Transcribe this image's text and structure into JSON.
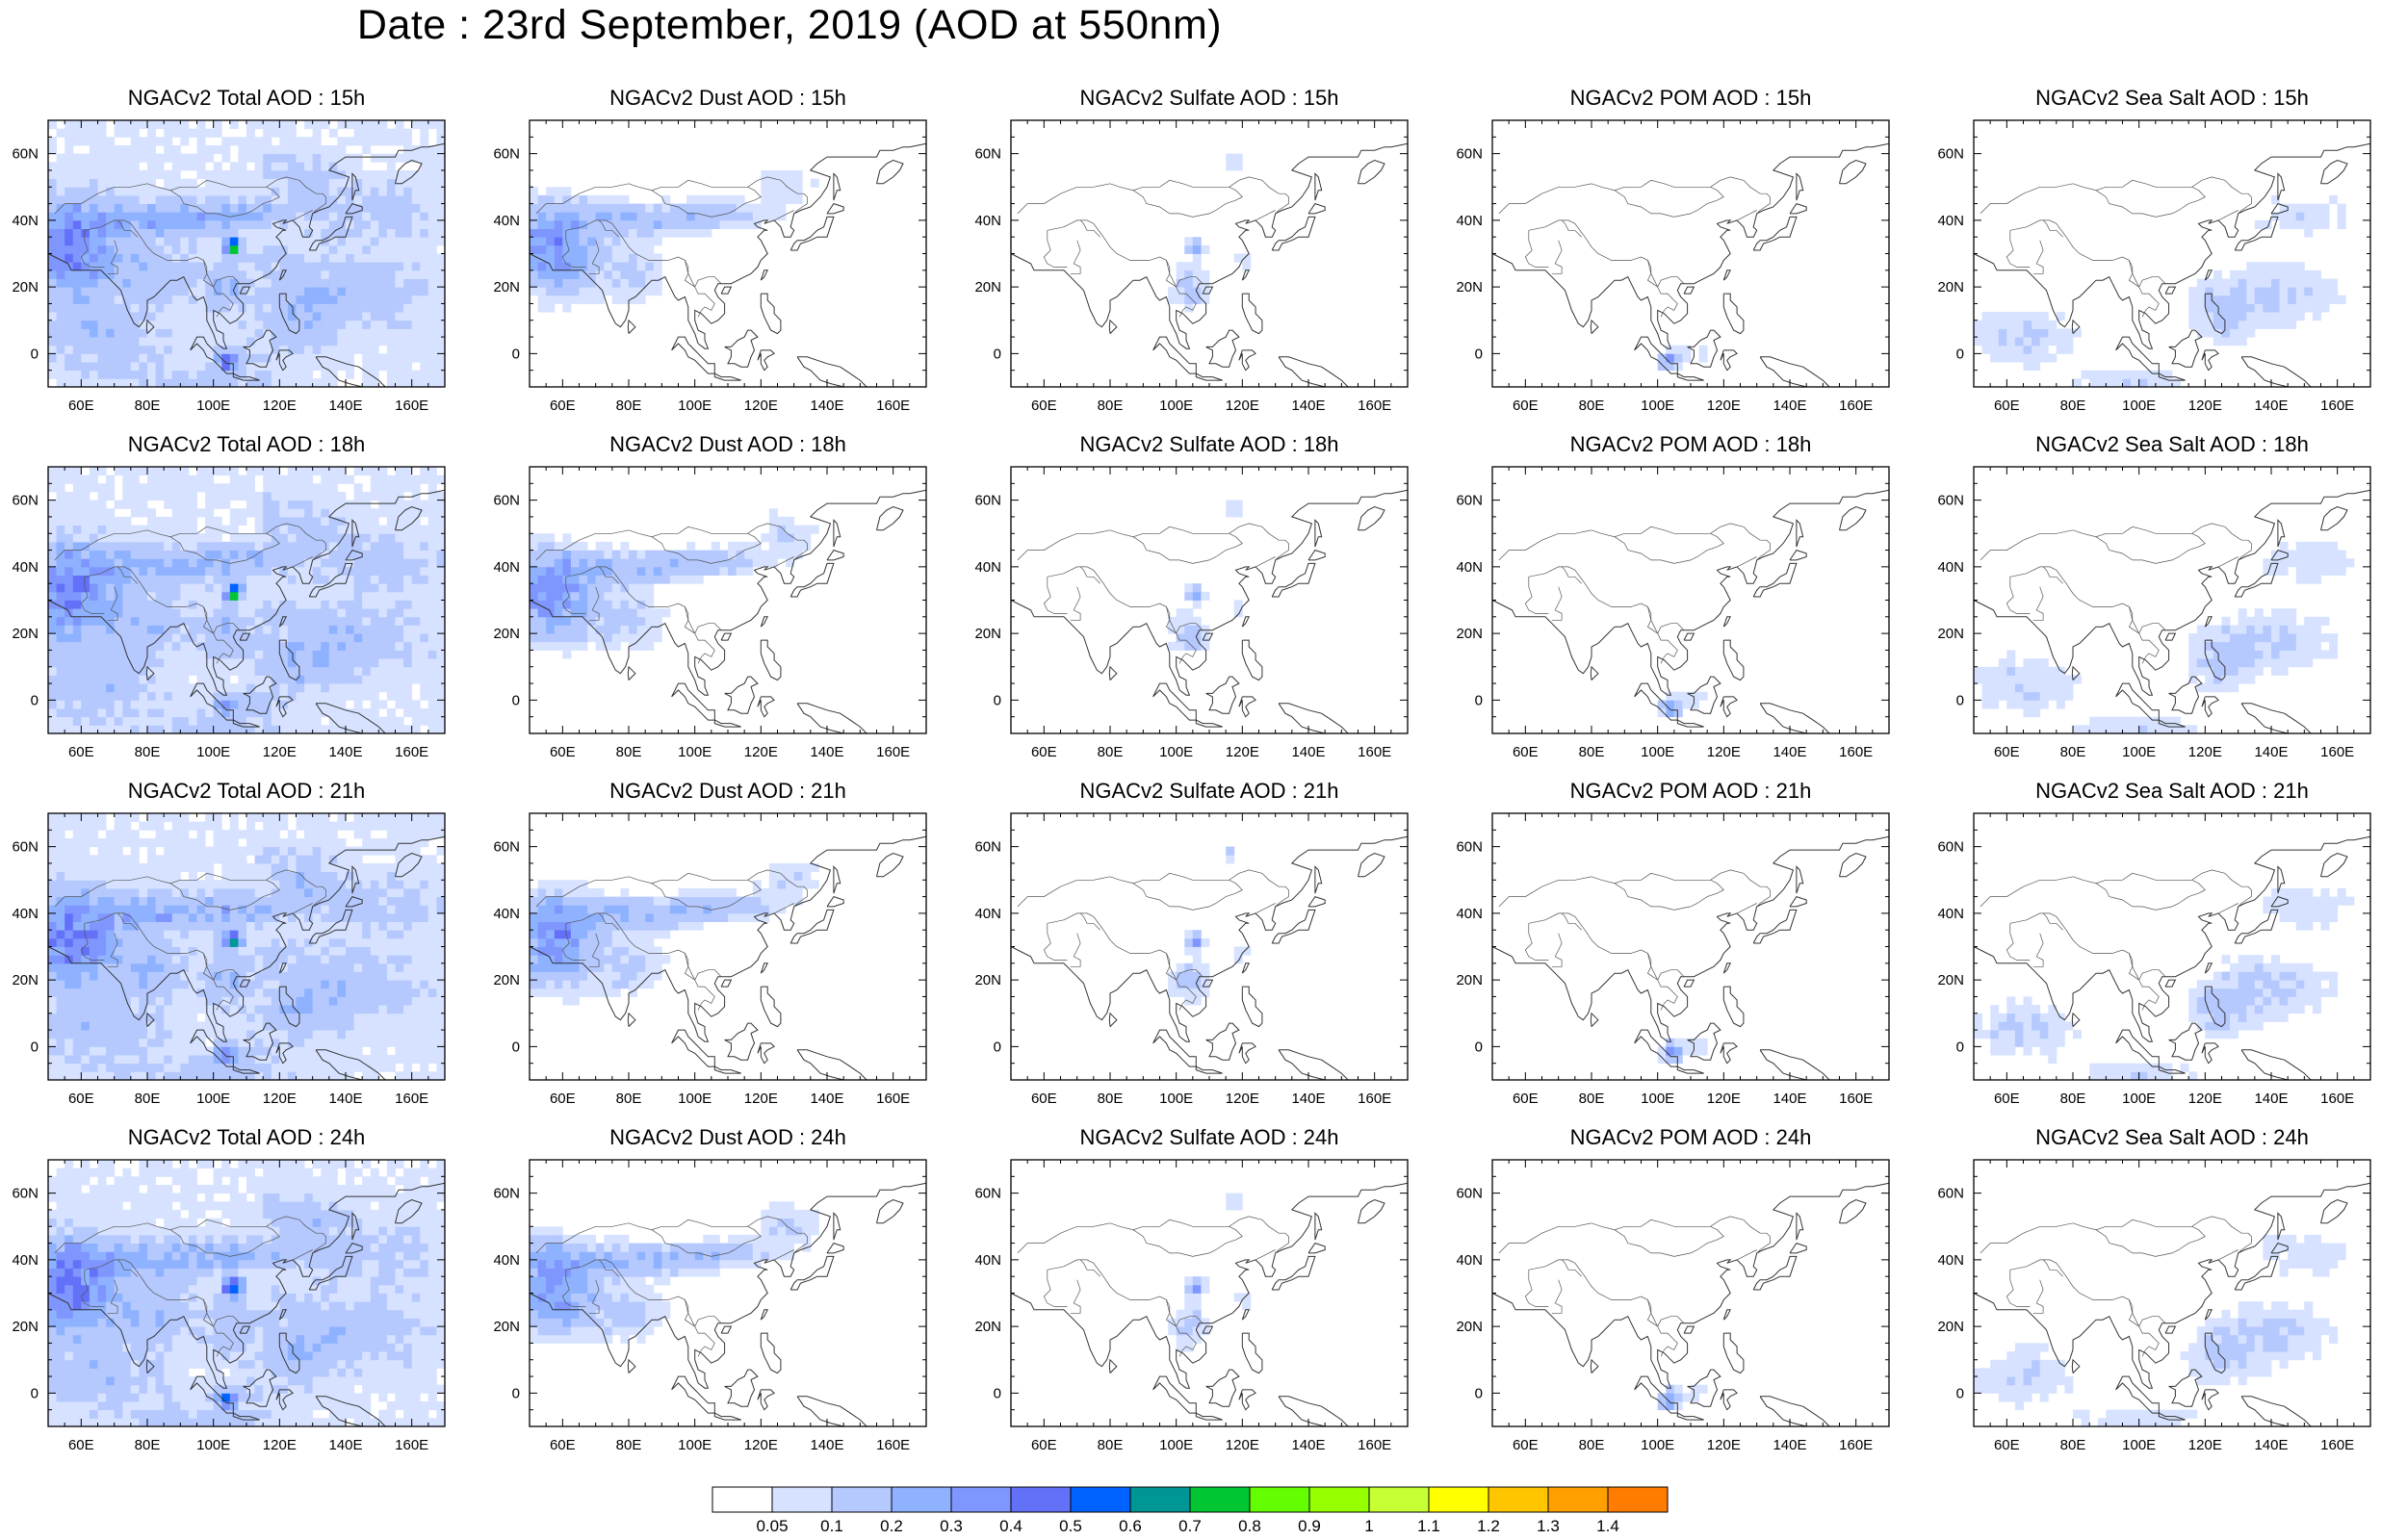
{
  "page_title": "Date : 23rd September, 2019 (AOD at 550nm)",
  "species": [
    "Total",
    "Dust",
    "Sulfate",
    "POM",
    "Sea Salt"
  ],
  "hours": [
    "15h",
    "18h",
    "21h",
    "24h"
  ],
  "panel_titles": [
    [
      "NGACv2 Total AOD : 15h",
      "NGACv2 Dust AOD : 15h",
      "NGACv2 Sulfate AOD : 15h",
      "NGACv2 POM AOD : 15h",
      "NGACv2 Sea Salt AOD : 15h"
    ],
    [
      "NGACv2 Total AOD : 18h",
      "NGACv2 Dust AOD : 18h",
      "NGACv2 Sulfate AOD : 18h",
      "NGACv2 POM AOD : 18h",
      "NGACv2 Sea Salt AOD : 18h"
    ],
    [
      "NGACv2 Total AOD : 21h",
      "NGACv2 Dust AOD : 21h",
      "NGACv2 Sulfate AOD : 21h",
      "NGACv2 POM AOD : 21h",
      "NGACv2 Sea Salt AOD : 21h"
    ],
    [
      "NGACv2 Total AOD : 24h",
      "NGACv2 Dust AOD : 24h",
      "NGACv2 Sulfate AOD : 24h",
      "NGACv2 POM AOD : 24h",
      "NGACv2 Sea Salt  AOD : 24h"
    ]
  ],
  "map": {
    "lon_range": [
      50,
      170
    ],
    "lat_range": [
      -10,
      70
    ],
    "lon_ticks": [
      60,
      80,
      100,
      120,
      140,
      160
    ],
    "lon_tick_labels": [
      "60E",
      "80E",
      "100E",
      "120E",
      "140E",
      "160E"
    ],
    "lat_ticks": [
      0,
      20,
      40,
      60
    ],
    "lat_tick_labels": [
      "0",
      "20N",
      "40N",
      "60N"
    ]
  },
  "colorbar": {
    "labels": [
      "0.05",
      "0.1",
      "0.2",
      "0.3",
      "0.4",
      "0.5",
      "0.6",
      "0.7",
      "0.8",
      "0.9",
      "1",
      "1.1",
      "1.2",
      "1.3",
      "1.4"
    ],
    "colors": [
      "#ffffff",
      "#d6e2ff",
      "#b5c9ff",
      "#8eb2ff",
      "#7f96ff",
      "#6370f8",
      "#0063ff",
      "#009696",
      "#00c633",
      "#63ff00",
      "#96ff00",
      "#c6ff33",
      "#ffff00",
      "#ffc600",
      "#ffa000",
      "#ff7c00",
      "#ff1900"
    ]
  }
}
